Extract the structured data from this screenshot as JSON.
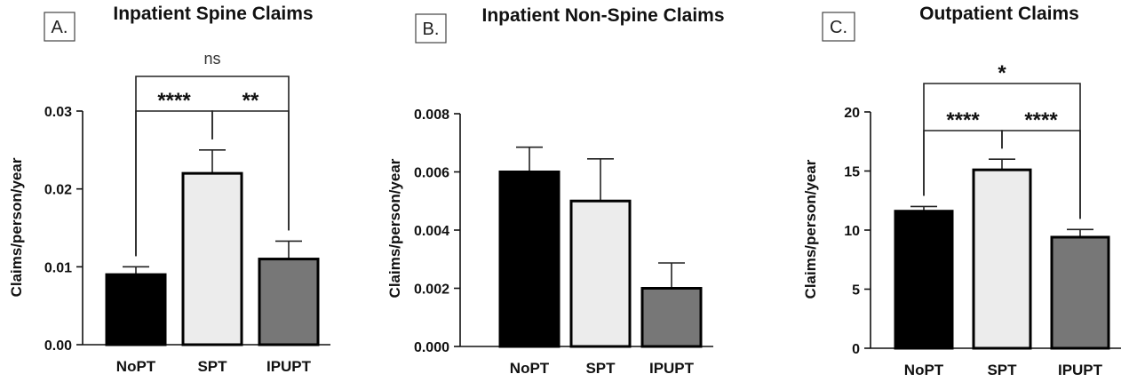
{
  "chart_data": [
    {
      "type": "bar",
      "panel_label": "A.",
      "title": "Inpatient Spine Claims",
      "xlabel": "",
      "ylabel": "Claims/person/year",
      "categories": [
        "NoPT",
        "SPT",
        "IPUPT"
      ],
      "values": [
        0.009,
        0.022,
        0.011
      ],
      "errors": [
        0.001,
        0.003,
        0.0023
      ],
      "colors": [
        "#000000",
        "#ececec",
        "#777777"
      ],
      "ylim": [
        0,
        0.03
      ],
      "yticks": [
        "0.00",
        "0.01",
        "0.02",
        "0.03"
      ],
      "significance": [
        {
          "from": 0,
          "to": 1,
          "label": "****"
        },
        {
          "from": 1,
          "to": 2,
          "label": "**"
        },
        {
          "from": 0,
          "to": 2,
          "label": "ns"
        }
      ]
    },
    {
      "type": "bar",
      "panel_label": "B.",
      "title": "Inpatient Non-Spine Claims",
      "xlabel": "",
      "ylabel": "Claims/person/year",
      "categories": [
        "NoPT",
        "SPT",
        "IPUPT"
      ],
      "values": [
        0.006,
        0.005,
        0.002
      ],
      "errors": [
        0.00085,
        0.00145,
        0.00087
      ],
      "colors": [
        "#000000",
        "#ececec",
        "#777777"
      ],
      "ylim": [
        0,
        0.008
      ],
      "yticks": [
        "0.000",
        "0.002",
        "0.004",
        "0.006",
        "0.008"
      ],
      "significance": []
    },
    {
      "type": "bar",
      "panel_label": "C.",
      "title": "Outpatient Claims",
      "xlabel": "",
      "ylabel": "Claims/person/year",
      "categories": [
        "NoPT",
        "SPT",
        "IPUPT"
      ],
      "values": [
        11.6,
        15.1,
        9.4
      ],
      "errors": [
        0.4,
        0.9,
        0.65
      ],
      "colors": [
        "#000000",
        "#ececec",
        "#777777"
      ],
      "ylim": [
        0,
        20
      ],
      "yticks": [
        "0",
        "5",
        "10",
        "15",
        "20"
      ],
      "significance": [
        {
          "from": 0,
          "to": 1,
          "label": "****"
        },
        {
          "from": 1,
          "to": 2,
          "label": "****"
        },
        {
          "from": 0,
          "to": 2,
          "label": "*"
        }
      ]
    }
  ]
}
